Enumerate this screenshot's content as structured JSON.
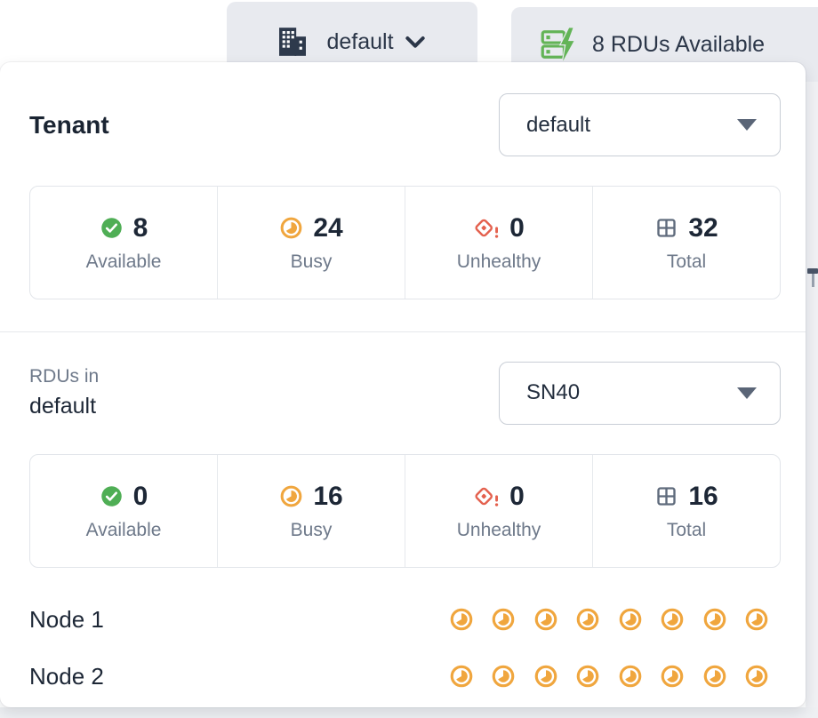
{
  "toolbar": {
    "tenant_button": {
      "label": "default",
      "icon": "building-icon"
    },
    "rdu_button": {
      "label": "8 RDUs Available",
      "icon": "rdu-bolt-icon"
    }
  },
  "panel": {
    "tenant": {
      "heading": "Tenant",
      "select_value": "default",
      "stats": [
        {
          "icon": "check-circle",
          "value": "8",
          "label": "Available"
        },
        {
          "icon": "busy",
          "value": "24",
          "label": "Busy"
        },
        {
          "icon": "unhealthy",
          "value": "0",
          "label": "Unhealthy"
        },
        {
          "icon": "grid",
          "value": "32",
          "label": "Total"
        }
      ]
    },
    "rdus": {
      "label_prefix": "RDUs in",
      "label_name": "default",
      "select_value": "SN40",
      "stats": [
        {
          "icon": "check-circle",
          "value": "0",
          "label": "Available"
        },
        {
          "icon": "busy",
          "value": "16",
          "label": "Busy"
        },
        {
          "icon": "unhealthy",
          "value": "0",
          "label": "Unhealthy"
        },
        {
          "icon": "grid",
          "value": "16",
          "label": "Total"
        }
      ]
    },
    "nodes": [
      {
        "name": "Node 1",
        "busy_count": 8
      },
      {
        "name": "Node 2",
        "busy_count": 8
      }
    ]
  },
  "colors": {
    "available_green": "#4fae55",
    "busy_orange": "#f0a63e",
    "unhealthy_red": "#e4614e",
    "total_slate": "#5f6b7c",
    "icon_navy": "#2e3a4c",
    "rdu_green": "#63b457"
  }
}
